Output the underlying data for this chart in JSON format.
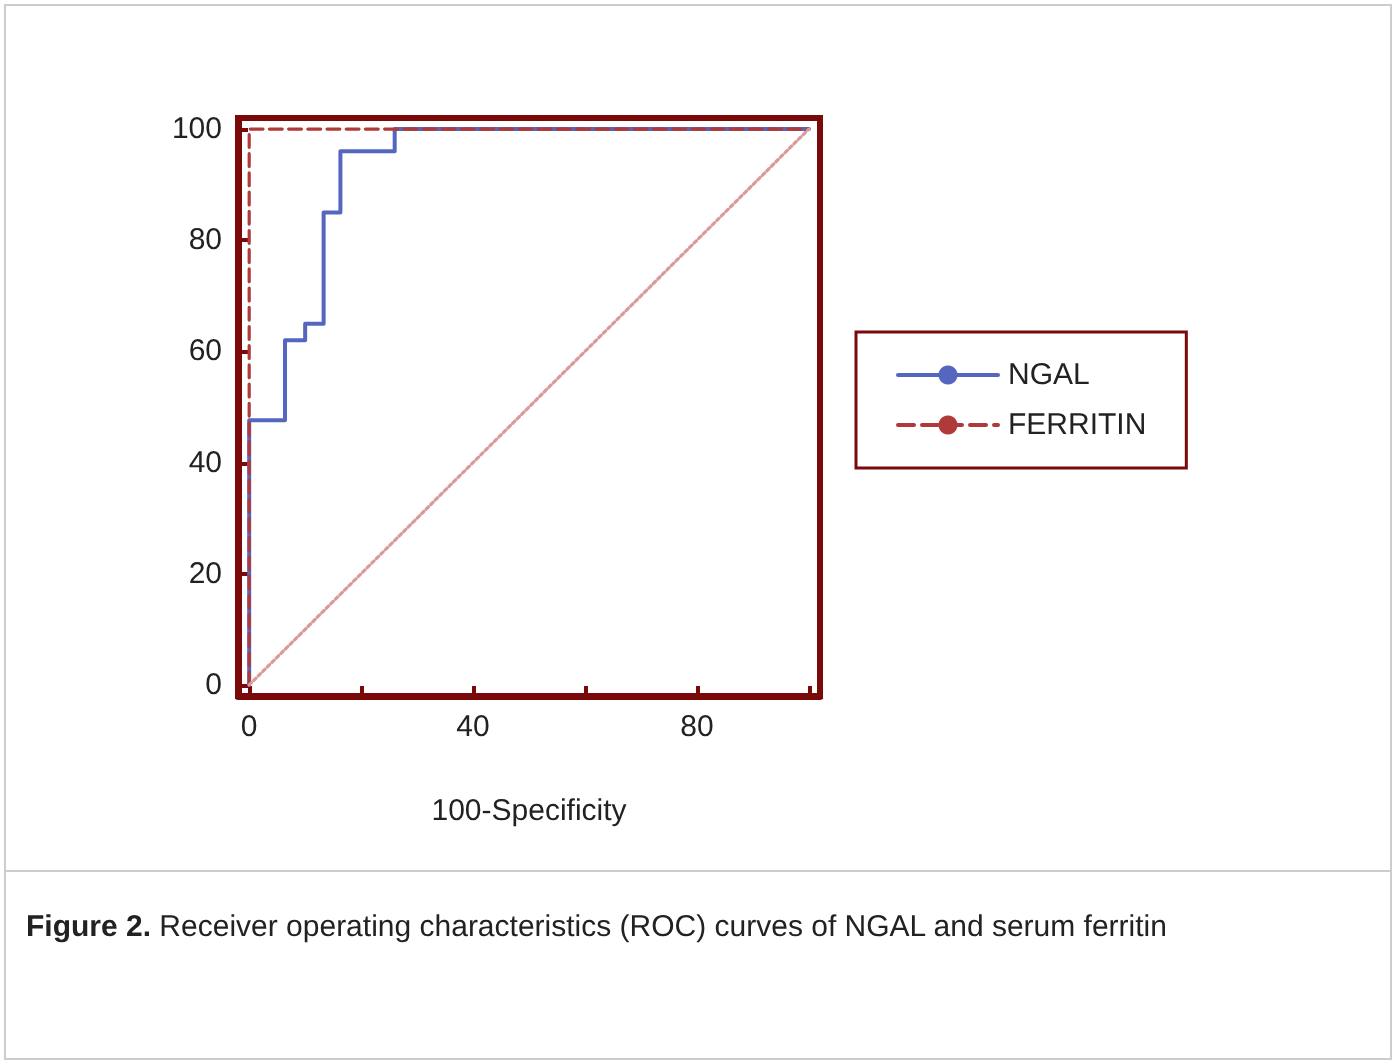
{
  "chart_data": {
    "type": "line",
    "xlabel": "100-Specificity",
    "xlim": [
      -2,
      102
    ],
    "ylim": [
      -2,
      102
    ],
    "xticks": [
      0,
      {
        "value": 20,
        "label": null
      },
      40,
      {
        "value": 60,
        "label": null
      },
      80,
      {
        "value": 100,
        "label": null
      }
    ],
    "yticks": [
      0,
      20,
      40,
      60,
      80,
      100
    ],
    "grid": false,
    "legend": "right",
    "marker": "none",
    "series": [
      {
        "name": "NGAL",
        "color": "#5566c0",
        "line_style": "solid",
        "x": [
          0,
          0,
          6.4,
          6.4,
          10,
          10,
          13.3,
          13.3,
          16.3,
          16.3,
          26,
          26,
          100
        ],
        "values": [
          0,
          47.6,
          47.6,
          62,
          62,
          65,
          65,
          85,
          85,
          96,
          96,
          100,
          100
        ]
      },
      {
        "name": "FERRITIN",
        "color": "#b03a3a",
        "line_style": "dashed",
        "x": [
          0,
          0,
          100
        ],
        "values": [
          0,
          100,
          100
        ]
      },
      {
        "color": "#d99a9a",
        "line_style": "dotted",
        "x": [
          0,
          100
        ],
        "values": [
          0,
          100
        ]
      }
    ],
    "annotations": [
      "Figure 2. Receiver operating characteristics (ROC) curves of NGAL and serum ferritin"
    ]
  }
}
